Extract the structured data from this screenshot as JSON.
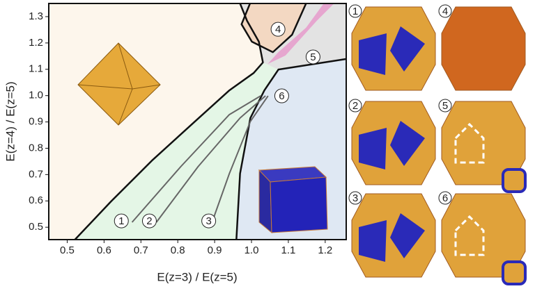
{
  "chart_data": {
    "type": "region-map",
    "xlabel": "E(z=3) / E(z=5)",
    "ylabel": "E(z=4) / E(z=5)",
    "xlim": [
      0.45,
      1.257
    ],
    "ylim": [
      0.453,
      1.35
    ],
    "xticks": [
      0.5,
      0.6,
      0.7,
      0.8,
      0.9,
      {
        "value": 1,
        "label": "1.0"
      },
      1.1,
      1.2
    ],
    "yticks": [
      0.5,
      0.6,
      0.7,
      0.8,
      0.9,
      {
        "value": 1,
        "label": "1.0"
      },
      1.1,
      1.2,
      1.3
    ],
    "regions": [
      {
        "color": "#e4f6e6",
        "x": [
          0.521,
          0.619,
          0.732,
          0.846,
          0.94,
          1.006,
          1.031,
          1.073,
          1.035,
          0.997,
          0.969,
          0.959
        ],
        "y": [
          0.453,
          0.598,
          0.756,
          0.901,
          1.02,
          1.086,
          1.126,
          1.099,
          1.02,
          0.915,
          0.704,
          0.453
        ]
      },
      {
        "color": "#dfe8f3",
        "x": [
          0.959,
          0.969,
          0.997,
          1.035,
          1.073,
          1.257,
          1.257
        ],
        "y": [
          0.453,
          0.704,
          0.915,
          1.02,
          1.099,
          1.139,
          0.453
        ]
      },
      {
        "color": "#e3e3e3",
        "x": [
          1.02,
          1.031,
          1.073,
          1.257,
          1.257,
          0.969,
          0.988
        ],
        "y": [
          1.205,
          1.126,
          1.099,
          1.139,
          1.35,
          1.35,
          1.284
        ]
      },
      {
        "color": "#f3d8c2",
        "x": [
          0.996,
          0.973,
          1.001,
          1.058,
          1.11,
          1.148
        ],
        "y": [
          1.35,
          1.271,
          1.205,
          1.165,
          1.231,
          1.35
        ]
      },
      {
        "color": "#e6a6cf",
        "x": [
          1.044,
          1.092,
          1.177,
          1.224,
          1.196,
          1.148,
          1.073
        ],
        "y": [
          1.12,
          1.152,
          1.284,
          1.35,
          1.35,
          1.258,
          1.165
        ]
      }
    ],
    "boundaries": [
      {
        "color": "#111111",
        "width": 2.5,
        "x": [
          0.521,
          0.619,
          0.732,
          0.846,
          0.94,
          1.006,
          1.031,
          1.02,
          0.988,
          0.969
        ],
        "y": [
          0.453,
          0.598,
          0.756,
          0.901,
          1.02,
          1.086,
          1.126,
          1.205,
          1.284,
          1.35
        ]
      },
      {
        "color": "#111111",
        "width": 2.5,
        "x": [
          0.959,
          0.969,
          0.997,
          1.035,
          1.073,
          1.256
        ],
        "y": [
          0.453,
          0.704,
          0.915,
          1.02,
          1.099,
          1.139
        ]
      },
      {
        "color": "#111111",
        "width": 2.5,
        "x": [
          0.996,
          0.973,
          1.001,
          1.058,
          1.11,
          1.148
        ],
        "y": [
          1.35,
          1.271,
          1.205,
          1.165,
          1.231,
          1.35
        ]
      },
      {
        "color": "#666666",
        "width": 2,
        "x": [
          0.676,
          0.808,
          0.94,
          1.025
        ],
        "y": [
          0.519,
          0.73,
          0.928,
          0.999
        ]
      },
      {
        "color": "#666666",
        "width": 2,
        "x": [
          0.742,
          0.855,
          0.969,
          1.038
        ],
        "y": [
          0.519,
          0.73,
          0.915,
          0.999
        ]
      },
      {
        "color": "#666666",
        "width": 2,
        "x": [
          0.893,
          0.94,
          0.997,
          1.045
        ],
        "y": [
          0.519,
          0.704,
          0.902,
          0.999
        ]
      }
    ],
    "markers": [
      {
        "label": "1",
        "x": 0.647,
        "y": 0.524
      },
      {
        "label": "2",
        "x": 0.723,
        "y": 0.524
      },
      {
        "label": "3",
        "x": 0.884,
        "y": 0.524
      },
      {
        "label": "4",
        "x": 1.072,
        "y": 1.252
      },
      {
        "label": "5",
        "x": 1.167,
        "y": 1.147
      },
      {
        "label": "6",
        "x": 1.082,
        "y": 0.999
      }
    ]
  },
  "panels": [
    {
      "label": "1"
    },
    {
      "label": "4"
    },
    {
      "label": "2"
    },
    {
      "label": "5"
    },
    {
      "label": "3"
    },
    {
      "label": "6"
    }
  ]
}
